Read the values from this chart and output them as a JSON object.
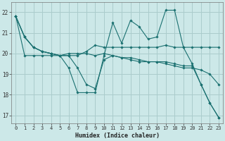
{
  "xlabel": "Humidex (Indice chaleur)",
  "bg_color": "#cce8e8",
  "grid_color": "#aacccc",
  "line_color": "#1a7070",
  "xlim": [
    -0.5,
    23.5
  ],
  "ylim": [
    16.6,
    22.5
  ],
  "yticks": [
    17,
    18,
    19,
    20,
    21,
    22
  ],
  "xticks": [
    0,
    1,
    2,
    3,
    4,
    5,
    6,
    7,
    8,
    9,
    10,
    11,
    12,
    13,
    14,
    15,
    16,
    17,
    18,
    19,
    20,
    21,
    22,
    23
  ],
  "lines": [
    {
      "x": [
        0,
        1,
        2,
        3,
        4,
        5,
        6,
        7,
        8,
        9,
        10,
        11,
        12,
        13,
        14,
        15,
        16,
        17,
        18,
        19,
        20,
        21,
        22,
        23
      ],
      "y": [
        21.8,
        20.8,
        20.3,
        20.1,
        20.0,
        19.9,
        19.3,
        18.1,
        18.1,
        18.1,
        19.9,
        21.5,
        20.5,
        21.6,
        21.3,
        20.7,
        20.8,
        22.1,
        22.1,
        20.3,
        19.5,
        18.5,
        17.6,
        16.9
      ]
    },
    {
      "x": [
        0,
        1,
        2,
        3,
        4,
        5,
        6,
        7,
        8,
        9,
        10,
        11,
        12,
        13,
        14,
        15,
        16,
        17,
        18,
        19,
        20,
        21,
        22,
        23
      ],
      "y": [
        21.8,
        19.9,
        19.9,
        19.9,
        19.9,
        19.9,
        20.0,
        20.0,
        20.0,
        19.9,
        20.0,
        19.9,
        19.8,
        19.7,
        19.6,
        19.6,
        19.6,
        19.6,
        19.5,
        19.4,
        19.4,
        18.5,
        17.6,
        16.9
      ]
    },
    {
      "x": [
        0,
        1,
        2,
        3,
        4,
        5,
        6,
        7,
        8,
        9,
        10,
        11,
        12,
        13,
        14,
        15,
        16,
        17,
        18,
        19,
        20,
        21,
        22,
        23
      ],
      "y": [
        21.8,
        20.8,
        20.3,
        20.1,
        20.0,
        19.9,
        19.9,
        19.3,
        18.5,
        18.3,
        19.7,
        19.9,
        19.8,
        19.8,
        19.7,
        19.6,
        19.6,
        19.5,
        19.4,
        19.3,
        19.3,
        19.2,
        19.0,
        18.5
      ]
    },
    {
      "x": [
        0,
        1,
        2,
        3,
        4,
        5,
        6,
        7,
        8,
        9,
        10,
        11,
        12,
        13,
        14,
        15,
        16,
        17,
        18,
        19,
        20,
        21,
        22,
        23
      ],
      "y": [
        21.8,
        20.8,
        20.3,
        20.1,
        20.0,
        19.9,
        19.9,
        19.9,
        20.1,
        20.4,
        20.3,
        20.3,
        20.3,
        20.3,
        20.3,
        20.3,
        20.3,
        20.4,
        20.3,
        20.3,
        20.3,
        20.3,
        20.3,
        20.3
      ]
    }
  ]
}
